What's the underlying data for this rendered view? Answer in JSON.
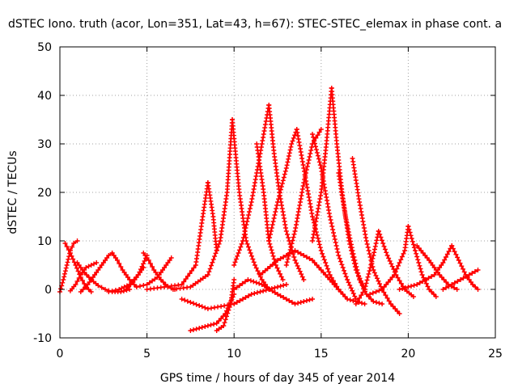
{
  "chart_data": {
    "type": "scatter",
    "title": "dSTEC Iono. truth (acor, Lon=351, Lat=43, h=67): STEC-STEC_elemax in phase cont. a",
    "xlabel": "GPS time / hours of day 345 of year 2014",
    "ylabel": "dSTEC  / TECUs",
    "xlim": [
      0,
      25
    ],
    "ylim": [
      -10,
      50
    ],
    "x_ticks": [
      "0",
      "5",
      "10",
      "15",
      "20",
      "25"
    ],
    "y_ticks": [
      "-10",
      "0",
      "10",
      "20",
      "30",
      "40",
      "50"
    ],
    "grid": true,
    "legend": "none",
    "marker": "+",
    "color": "#ff0000",
    "series": [
      {
        "x": [
          0.0,
          0.2,
          0.4,
          0.6,
          0.8,
          1.0
        ],
        "values": [
          -0.5,
          2.0,
          5.0,
          8.0,
          9.5,
          10.0
        ]
      },
      {
        "x": [
          0.3,
          0.6,
          0.9,
          1.2,
          1.5,
          1.8
        ],
        "values": [
          9.5,
          7.5,
          5.0,
          2.5,
          0.5,
          -0.5
        ]
      },
      {
        "x": [
          0.6,
          0.9,
          1.2,
          1.5,
          1.8,
          2.1
        ],
        "values": [
          -0.3,
          1.0,
          3.0,
          4.5,
          5.0,
          5.5
        ]
      },
      {
        "x": [
          1.2,
          1.6,
          2.0,
          2.5,
          2.8,
          3.0
        ],
        "values": [
          -0.5,
          1.0,
          3.0,
          5.5,
          7.0,
          7.5
        ]
      },
      {
        "x": [
          1.0,
          1.4,
          1.8,
          2.2,
          2.6,
          3.0,
          3.5,
          4.0
        ],
        "values": [
          5.5,
          3.5,
          2.0,
          0.8,
          0.0,
          -0.5,
          -0.5,
          0.0
        ]
      },
      {
        "x": [
          3.0,
          3.3,
          3.6,
          4.0,
          4.4
        ],
        "values": [
          7.5,
          6.0,
          4.0,
          2.0,
          0.5
        ]
      },
      {
        "x": [
          2.8,
          3.4,
          4.0,
          4.5,
          4.8
        ],
        "values": [
          -0.5,
          0.0,
          1.0,
          3.0,
          4.5
        ]
      },
      {
        "x": [
          3.8,
          4.2,
          4.5,
          5.0
        ],
        "values": [
          0.0,
          1.5,
          3.0,
          7.0
        ]
      },
      {
        "x": [
          4.8,
          5.1,
          5.4,
          5.8,
          6.2,
          6.6
        ],
        "values": [
          7.5,
          6.0,
          4.0,
          2.0,
          0.5,
          0.0
        ]
      },
      {
        "x": [
          4.4,
          5.0,
          5.6,
          6.0,
          6.4
        ],
        "values": [
          0.5,
          1.0,
          2.5,
          4.5,
          6.5
        ]
      },
      {
        "x": [
          5.0,
          6.0,
          7.0,
          7.8,
          8.2,
          8.5
        ],
        "values": [
          0.0,
          0.5,
          1.0,
          5.0,
          15.0,
          22.0
        ]
      },
      {
        "x": [
          6.5,
          7.5,
          8.5,
          9.2,
          9.6,
          9.9
        ],
        "values": [
          0.0,
          0.5,
          3.0,
          10.0,
          20.0,
          35.0
        ]
      },
      {
        "x": [
          8.5,
          8.8,
          9.0
        ],
        "values": [
          22.0,
          15.0,
          8.0
        ]
      },
      {
        "x": [
          7.5,
          8.0,
          8.5,
          9.0,
          9.5,
          10.0
        ],
        "values": [
          -8.5,
          -8.0,
          -7.5,
          -7.0,
          -5.0,
          -1.0
        ]
      },
      {
        "x": [
          9.0,
          9.4,
          9.8,
          10.0
        ],
        "values": [
          -8.5,
          -7.5,
          -3.0,
          2.0
        ]
      },
      {
        "x": [
          9.9,
          10.3,
          10.7,
          11.2,
          11.6,
          12.0
        ],
        "values": [
          35.0,
          20.0,
          10.0,
          5.0,
          2.0,
          0.0
        ]
      },
      {
        "x": [
          10.0,
          10.5,
          11.0,
          11.5,
          12.0
        ],
        "values": [
          5.0,
          10.0,
          18.0,
          28.0,
          38.0
        ]
      },
      {
        "x": [
          11.3,
          11.7,
          12.0,
          12.4,
          12.8
        ],
        "values": [
          30.0,
          20.0,
          10.0,
          5.0,
          2.0
        ]
      },
      {
        "x": [
          12.0,
          12.3,
          12.6,
          13.0,
          13.5,
          14.0
        ],
        "values": [
          38.0,
          28.0,
          20.0,
          12.0,
          6.0,
          2.0
        ]
      },
      {
        "x": [
          12.0,
          12.5,
          13.0,
          13.3,
          13.6
        ],
        "values": [
          10.0,
          18.0,
          25.0,
          30.0,
          33.0
        ]
      },
      {
        "x": [
          13.6,
          14.0,
          14.5,
          15.0,
          15.5,
          16.0
        ],
        "values": [
          33.0,
          25.0,
          15.0,
          8.0,
          3.0,
          0.0
        ]
      },
      {
        "x": [
          13.0,
          13.5,
          14.0,
          14.5,
          15.0
        ],
        "values": [
          5.0,
          12.0,
          22.0,
          30.0,
          33.0
        ]
      },
      {
        "x": [
          14.5,
          15.0,
          15.5,
          16.0,
          16.5,
          17.0
        ],
        "values": [
          32.0,
          25.0,
          15.0,
          7.0,
          2.0,
          -2.0
        ]
      },
      {
        "x": [
          15.6,
          15.9,
          16.2,
          16.6,
          17.0,
          17.5
        ],
        "values": [
          41.5,
          30.0,
          20.0,
          10.0,
          4.0,
          0.0
        ]
      },
      {
        "x": [
          14.5,
          15.0,
          15.3,
          15.6
        ],
        "values": [
          10.0,
          20.0,
          30.0,
          41.5
        ]
      },
      {
        "x": [
          16.0,
          16.4,
          16.8,
          17.2,
          17.6,
          18.0,
          18.5
        ],
        "values": [
          24.0,
          15.0,
          8.0,
          2.0,
          -1.0,
          -2.5,
          -3.0
        ]
      },
      {
        "x": [
          16.8,
          17.2,
          17.6,
          18.0,
          18.5,
          19.0,
          19.5
        ],
        "values": [
          27.0,
          18.0,
          10.0,
          4.0,
          0.0,
          -3.0,
          -5.0
        ]
      },
      {
        "x": [
          17.0,
          17.5,
          18.0,
          18.3
        ],
        "values": [
          -3.0,
          0.0,
          7.0,
          12.0
        ]
      },
      {
        "x": [
          18.3,
          18.8,
          19.3,
          19.8,
          20.3
        ],
        "values": [
          12.0,
          7.0,
          3.0,
          0.0,
          -1.5
        ]
      },
      {
        "x": [
          17.8,
          18.5,
          19.2,
          19.8,
          20.0
        ],
        "values": [
          -1.0,
          0.0,
          3.0,
          8.0,
          13.0
        ]
      },
      {
        "x": [
          20.0,
          20.4,
          20.8,
          21.2,
          21.6
        ],
        "values": [
          13.0,
          8.0,
          3.0,
          0.0,
          -1.5
        ]
      },
      {
        "x": [
          20.5,
          21.2,
          21.8,
          22.3,
          22.8
        ],
        "values": [
          9.0,
          6.0,
          3.0,
          1.0,
          0.0
        ]
      },
      {
        "x": [
          19.5,
          20.5,
          21.5,
          22.0,
          22.5
        ],
        "values": [
          0.0,
          1.0,
          3.0,
          5.5,
          9.0
        ]
      },
      {
        "x": [
          22.5,
          22.9,
          23.3,
          23.7,
          24.0
        ],
        "values": [
          9.0,
          6.0,
          3.0,
          1.0,
          0.0
        ]
      },
      {
        "x": [
          22.0,
          22.5,
          23.0,
          23.5,
          24.0
        ],
        "values": [
          0.0,
          1.0,
          2.0,
          3.0,
          4.0
        ]
      },
      {
        "x": [
          10.0,
          10.8,
          11.6,
          12.5,
          13.5,
          14.5
        ],
        "values": [
          0.0,
          2.0,
          1.0,
          -1.0,
          -3.0,
          -2.0
        ]
      },
      {
        "x": [
          7.0,
          8.5,
          10.0,
          11.0,
          12.0,
          13.0
        ],
        "values": [
          -2.0,
          -4.0,
          -3.0,
          -1.0,
          0.0,
          1.0
        ]
      },
      {
        "x": [
          11.5,
          12.5,
          13.5,
          14.5,
          15.5,
          16.5,
          17.5
        ],
        "values": [
          3.0,
          6.0,
          8.0,
          6.0,
          2.0,
          -2.0,
          -3.0
        ]
      }
    ]
  }
}
